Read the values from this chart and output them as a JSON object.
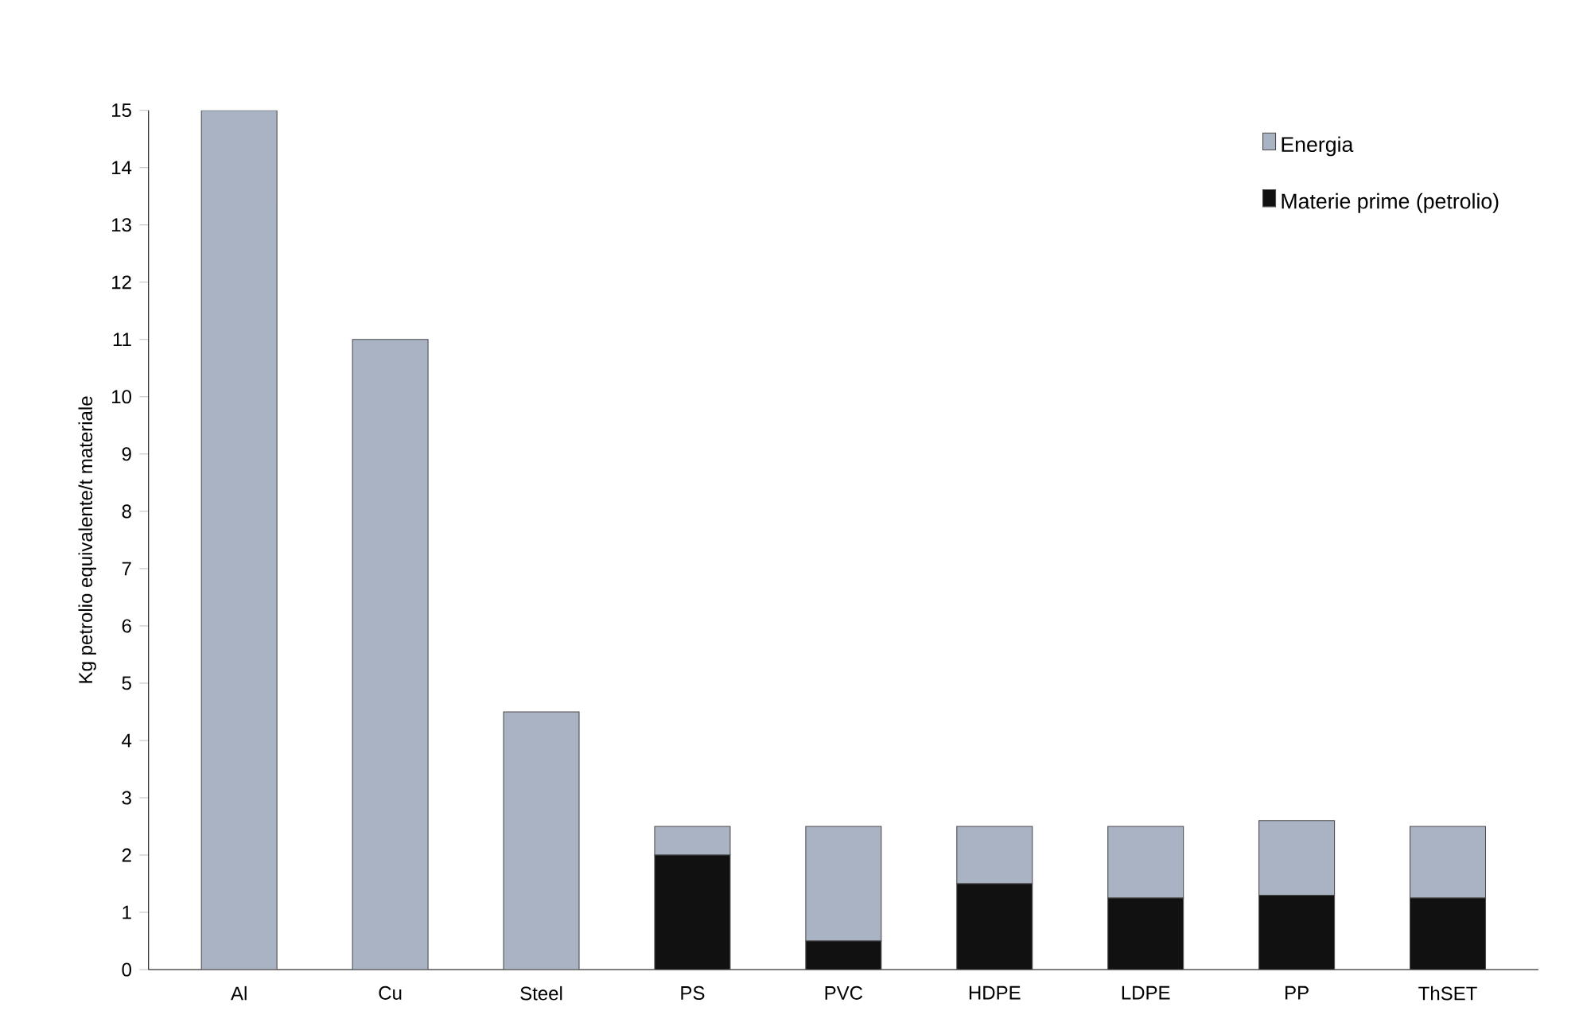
{
  "chart_data": {
    "type": "bar",
    "stacked": true,
    "ylabel": "Kg petrolio equivalente/t materiale",
    "categories": [
      "Al",
      "Cu",
      "Steel",
      "PS",
      "PVC",
      "HDPE",
      "LDPE",
      "PP",
      "ThSET"
    ],
    "series": [
      {
        "name": "Materie prime (petrolio)",
        "color": "#111111",
        "values": [
          0,
          0,
          0,
          2.0,
          0.5,
          1.5,
          1.25,
          1.3,
          1.25
        ]
      },
      {
        "name": "Energia",
        "color": "#a9b3c4",
        "values": [
          15,
          11,
          4.5,
          0.5,
          2.0,
          1.0,
          1.25,
          1.3,
          1.25
        ]
      }
    ],
    "ylim": [
      0,
      15
    ],
    "yticks": [
      0,
      1,
      2,
      3,
      4,
      5,
      6,
      7,
      8,
      9,
      10,
      11,
      12,
      13,
      14,
      15
    ],
    "legend": "top right",
    "grid": false
  }
}
